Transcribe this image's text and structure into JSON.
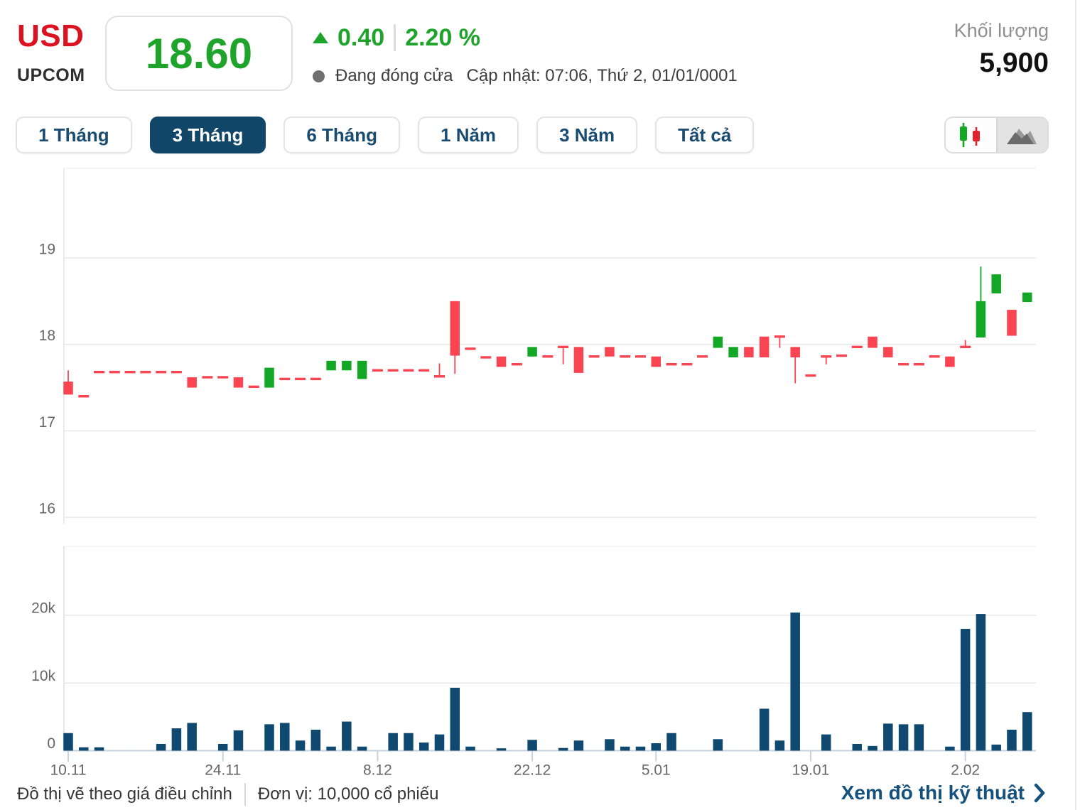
{
  "header": {
    "symbol": "USD",
    "exchange": "UPCOM",
    "price": "18.60",
    "change": "0.40",
    "change_percent": "2.20 %",
    "status": "Đang đóng cửa",
    "updated": "Cập nhật: 07:06, Thứ 2, 01/01/0001",
    "volume_label": "Khối lượng",
    "volume_value": "5,900"
  },
  "colors": {
    "up_green": "#12A825",
    "down_red": "#FA4452",
    "price_green": "#1FA42B",
    "symbol_red": "#DB1220",
    "active_tab_bg": "#124669",
    "tab_text": "#1A4B70",
    "volume_bar": "#10496F",
    "gridline": "#E8E8E8",
    "axis_text": "#666666",
    "baseline": "#C7D2DE",
    "link": "#14517D"
  },
  "tabs": {
    "items": [
      {
        "label": "1 Tháng",
        "active": false
      },
      {
        "label": "3 Tháng",
        "active": true
      },
      {
        "label": "6 Tháng",
        "active": false
      },
      {
        "label": "1 Năm",
        "active": false
      },
      {
        "label": "3 Năm",
        "active": false
      },
      {
        "label": "Tất cả",
        "active": false
      }
    ],
    "chart_type_buttons": [
      {
        "icon": "candlestick-icon",
        "selected": false
      },
      {
        "icon": "area-chart-icon",
        "selected": true
      }
    ]
  },
  "chart_data": {
    "type": "candlestick+volume",
    "title": "USD 3-month adjusted price chart",
    "price_axis": {
      "ticks": [
        19,
        18,
        17,
        16
      ],
      "ylim": [
        15.93,
        20.03
      ]
    },
    "volume_axis": {
      "ticks": [
        {
          "v": 20000,
          "label": "20k"
        },
        {
          "v": 10000,
          "label": "10k"
        },
        {
          "v": 0,
          "label": "0"
        }
      ],
      "ylim": [
        0,
        30000
      ]
    },
    "x_ticks": [
      {
        "i": 0,
        "label": "10.11"
      },
      {
        "i": 10,
        "label": "24.11"
      },
      {
        "i": 20,
        "label": "8.12"
      },
      {
        "i": 30,
        "label": "22.12"
      },
      {
        "i": 38,
        "label": "5.01"
      },
      {
        "i": 48,
        "label": "19.01"
      },
      {
        "i": 58,
        "label": "2.02"
      }
    ],
    "candles_format": "[open, high, low, close] ; open==close rendered as flat dash",
    "candles": [
      [
        17.57,
        17.7,
        17.42,
        17.42
      ],
      [
        17.4,
        17.4,
        17.4,
        17.4
      ],
      [
        17.68,
        17.68,
        17.68,
        17.68
      ],
      [
        17.68,
        17.68,
        17.68,
        17.68
      ],
      [
        17.68,
        17.68,
        17.68,
        17.68
      ],
      [
        17.68,
        17.68,
        17.68,
        17.68
      ],
      [
        17.68,
        17.68,
        17.68,
        17.68
      ],
      [
        17.68,
        17.68,
        17.68,
        17.68
      ],
      [
        17.62,
        17.62,
        17.5,
        17.5
      ],
      [
        17.62,
        17.62,
        17.62,
        17.62
      ],
      [
        17.62,
        17.62,
        17.62,
        17.62
      ],
      [
        17.62,
        17.62,
        17.5,
        17.5
      ],
      [
        17.51,
        17.51,
        17.51,
        17.51
      ],
      [
        17.5,
        17.73,
        17.5,
        17.73
      ],
      [
        17.6,
        17.6,
        17.6,
        17.6
      ],
      [
        17.6,
        17.6,
        17.6,
        17.6
      ],
      [
        17.6,
        17.6,
        17.6,
        17.6
      ],
      [
        17.7,
        17.81,
        17.7,
        17.81
      ],
      [
        17.7,
        17.81,
        17.7,
        17.81
      ],
      [
        17.6,
        17.81,
        17.6,
        17.81
      ],
      [
        17.7,
        17.7,
        17.7,
        17.7
      ],
      [
        17.7,
        17.7,
        17.7,
        17.7
      ],
      [
        17.7,
        17.7,
        17.7,
        17.7
      ],
      [
        17.7,
        17.7,
        17.7,
        17.7
      ],
      [
        17.63,
        17.78,
        17.63,
        17.63
      ],
      [
        18.5,
        18.5,
        17.66,
        17.87
      ],
      [
        17.95,
        17.95,
        17.95,
        17.95
      ],
      [
        17.85,
        17.85,
        17.85,
        17.85
      ],
      [
        17.86,
        17.86,
        17.74,
        17.74
      ],
      [
        17.77,
        17.77,
        17.77,
        17.77
      ],
      [
        17.86,
        17.97,
        17.86,
        17.97
      ],
      [
        17.86,
        17.86,
        17.86,
        17.86
      ],
      [
        17.97,
        17.97,
        17.77,
        17.97
      ],
      [
        17.97,
        17.97,
        17.67,
        17.67
      ],
      [
        17.86,
        17.86,
        17.86,
        17.86
      ],
      [
        17.97,
        17.97,
        17.86,
        17.86
      ],
      [
        17.86,
        17.86,
        17.86,
        17.86
      ],
      [
        17.86,
        17.86,
        17.86,
        17.86
      ],
      [
        17.86,
        17.86,
        17.74,
        17.74
      ],
      [
        17.77,
        17.77,
        17.77,
        17.77
      ],
      [
        17.77,
        17.77,
        17.77,
        17.77
      ],
      [
        17.86,
        17.86,
        17.86,
        17.86
      ],
      [
        17.96,
        18.09,
        17.96,
        18.09
      ],
      [
        17.85,
        17.97,
        17.85,
        17.97
      ],
      [
        17.97,
        17.97,
        17.85,
        17.85
      ],
      [
        18.09,
        18.09,
        17.85,
        17.85
      ],
      [
        18.09,
        18.09,
        17.96,
        18.09
      ],
      [
        17.97,
        17.97,
        17.55,
        17.85
      ],
      [
        17.64,
        17.64,
        17.64,
        17.64
      ],
      [
        17.86,
        17.86,
        17.77,
        17.86
      ],
      [
        17.87,
        17.87,
        17.87,
        17.87
      ],
      [
        17.97,
        17.97,
        17.97,
        17.97
      ],
      [
        18.09,
        18.09,
        17.96,
        17.96
      ],
      [
        17.97,
        17.97,
        17.85,
        17.85
      ],
      [
        17.77,
        17.77,
        17.77,
        17.77
      ],
      [
        17.77,
        17.77,
        17.77,
        17.77
      ],
      [
        17.86,
        17.86,
        17.86,
        17.86
      ],
      [
        17.86,
        17.86,
        17.74,
        17.74
      ],
      [
        17.97,
        18.05,
        17.97,
        17.97
      ],
      [
        18.08,
        18.9,
        18.08,
        18.5
      ],
      [
        18.59,
        18.81,
        18.59,
        18.81
      ],
      [
        18.4,
        18.4,
        18.1,
        18.1
      ],
      [
        18.49,
        18.6,
        18.49,
        18.6
      ]
    ],
    "volumes": [
      2600,
      500,
      500,
      0,
      0,
      0,
      1000,
      3300,
      4100,
      0,
      1000,
      3000,
      0,
      3900,
      4100,
      1500,
      3100,
      600,
      4300,
      600,
      0,
      2600,
      2600,
      1200,
      2400,
      9300,
      600,
      0,
      350,
      0,
      1600,
      0,
      400,
      1500,
      0,
      1700,
      600,
      600,
      1100,
      2600,
      0,
      0,
      1700,
      0,
      0,
      6200,
      1500,
      20400,
      0,
      2400,
      0,
      1000,
      700,
      4000,
      3900,
      3900,
      0,
      600,
      18000,
      20200,
      900,
      3100,
      5700
    ]
  },
  "footer": {
    "note_left": "Đồ thị vẽ theo giá điều chỉnh",
    "note_unit": "Đơn vị: 10,000 cổ phiếu",
    "link": "Xem đồ thị kỹ thuật"
  }
}
